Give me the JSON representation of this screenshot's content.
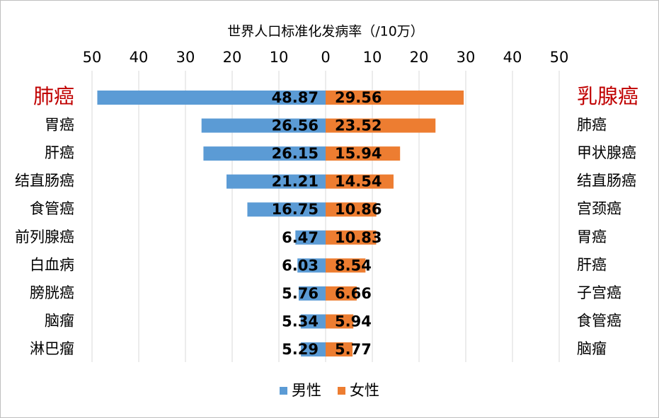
{
  "chart_data": {
    "type": "butterfly-bar",
    "title": "世界人口标准化发病率（/10万）",
    "xlim": [
      -50,
      50
    ],
    "xticks": [
      {
        "value": -50,
        "label": "50"
      },
      {
        "value": -40,
        "label": "40"
      },
      {
        "value": -30,
        "label": "30"
      },
      {
        "value": -20,
        "label": "20"
      },
      {
        "value": -10,
        "label": "10"
      },
      0,
      10,
      20,
      30,
      40,
      50
    ],
    "grid": true,
    "legend": "bottom",
    "highlight_color": "#c00000",
    "series": [
      {
        "name": "男性",
        "color": "#5b9bd5",
        "side": "left",
        "categories": [
          "肺癌",
          "胃癌",
          "肝癌",
          "结直肠癌",
          "食管癌",
          "前列腺癌",
          "白血病",
          "膀胱癌",
          "脑瘤",
          "淋巴瘤"
        ],
        "values": [
          48.87,
          26.56,
          26.15,
          21.21,
          16.75,
          6.47,
          6.03,
          5.76,
          5.34,
          5.29
        ]
      },
      {
        "name": "女性",
        "color": "#ed7d31",
        "side": "right",
        "categories": [
          "乳腺癌",
          "肺癌",
          "甲状腺癌",
          "结直肠癌",
          "宫颈癌",
          "胃癌",
          "肝癌",
          "子宫癌",
          "食管癌",
          "脑瘤"
        ],
        "values": [
          29.56,
          23.52,
          15.94,
          14.54,
          10.86,
          10.83,
          8.54,
          6.66,
          5.94,
          5.77
        ]
      }
    ]
  }
}
